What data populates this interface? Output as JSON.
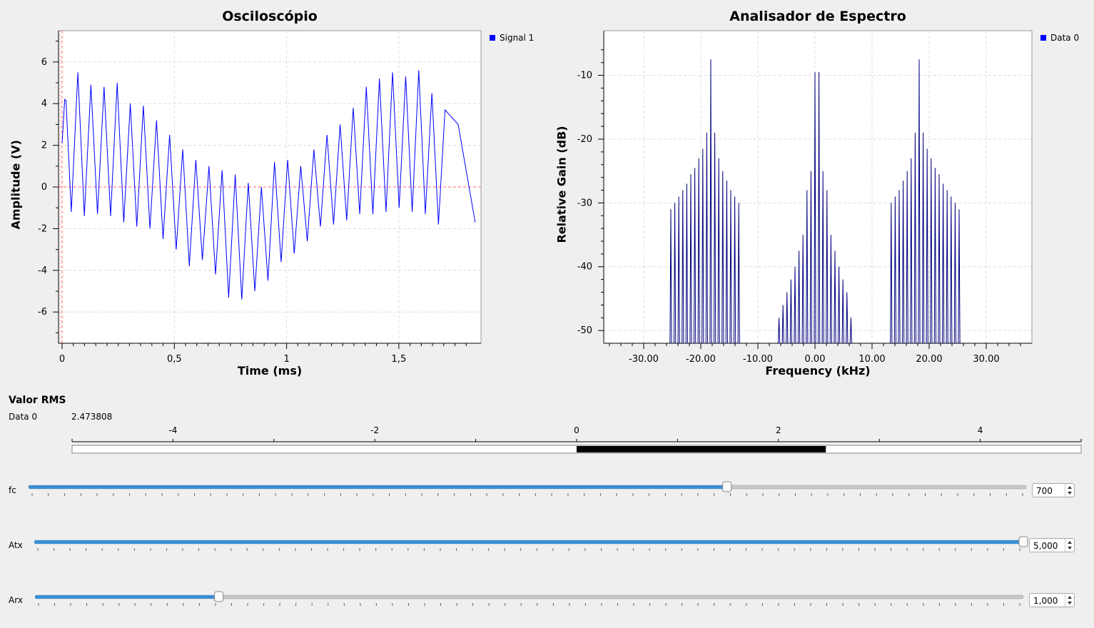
{
  "oscilloscope": {
    "title": "Osciloscópio",
    "xlabel": "Time (ms)",
    "ylabel": "Amplitude (V)",
    "legend": "Signal 1",
    "line_color": "#0000ff"
  },
  "spectrum": {
    "title": "Analisador de Espectro",
    "xlabel": "Frequency (kHz)",
    "ylabel": "Relative Gain (dB)",
    "legend": "Data 0",
    "line_color": "#000080"
  },
  "chart_data": [
    {
      "type": "line",
      "title": "Osciloscópio",
      "xlabel": "Time (ms)",
      "ylabel": "Amplitude (V)",
      "xlim": [
        0,
        1.85
      ],
      "ylim": [
        -7.5,
        7.5
      ],
      "xticks": [
        "0",
        "0,5",
        "1",
        "1,5"
      ],
      "xtick_values": [
        0,
        0.5,
        1,
        1.5
      ],
      "yticks": [
        "-6",
        "-4",
        "-2",
        "0",
        "2",
        "4",
        "6"
      ],
      "ytick_values": [
        -6,
        -4,
        -2,
        0,
        2,
        4,
        6
      ],
      "grid": true,
      "legend_position": "right",
      "series": [
        {
          "name": "Signal 1",
          "peaks": [
            4.2,
            5.5,
            4.9,
            4.8,
            5.0,
            4.0,
            3.9,
            3.2,
            2.5,
            1.8,
            1.3,
            1.0,
            0.8,
            0.6,
            0.2,
            0.0,
            1.2,
            1.3,
            1.0,
            1.8,
            2.5,
            3.0,
            3.8,
            4.8,
            5.2,
            5.5,
            5.3,
            5.6,
            4.5,
            3.7,
            3.0
          ],
          "troughs": [
            -1.2,
            -1.4,
            -1.3,
            -1.4,
            -1.7,
            -1.9,
            -2.0,
            -2.5,
            -3.0,
            -3.8,
            -3.5,
            -4.2,
            -5.3,
            -5.4,
            -5.0,
            -4.5,
            -3.6,
            -3.2,
            -2.6,
            -1.9,
            -1.8,
            -1.6,
            -1.3,
            -1.3,
            -1.2,
            -1.0,
            -1.2,
            -1.3,
            -1.8
          ]
        }
      ],
      "cursors": {
        "h_line_y": 0,
        "v_line_x": 0
      }
    },
    {
      "type": "line",
      "title": "Analisador de Espectro",
      "xlabel": "Frequency (kHz)",
      "ylabel": "Relative Gain (dB)",
      "xlim": [
        -37,
        38
      ],
      "ylim": [
        -52,
        -3
      ],
      "xticks": [
        "-30.00",
        "-20.00",
        "-10.00",
        "0.00",
        "10.00",
        "20.00",
        "30.00"
      ],
      "xtick_values": [
        -30,
        -20,
        -10,
        0,
        10,
        20,
        30
      ],
      "yticks": [
        "-10",
        "-20",
        "-30",
        "-40",
        "-50"
      ],
      "ytick_values": [
        -10,
        -20,
        -30,
        -40,
        -50
      ],
      "grid": true,
      "legend_position": "right",
      "series": [
        {
          "name": "Data 0",
          "peaks_left": {
            "center": -19.3,
            "spacing": 0.7,
            "values": [
              -31,
              -30,
              -29,
              -28,
              -27,
              -25.5,
              -24.5,
              -23,
              -21.5,
              -19,
              -7.5,
              -19,
              -23,
              -25,
              -26.5,
              -28,
              -29,
              -30
            ]
          },
          "peaks_center": {
            "center": 0.0,
            "spacing": 0.7,
            "values": [
              -48,
              -46,
              -44,
              -42,
              -40,
              -37.5,
              -35,
              -28,
              -25,
              -9.5,
              -9.5,
              -25,
              -28,
              -35,
              -37.5,
              -40,
              -42,
              -44,
              -48
            ]
          },
          "peaks_right": {
            "center": 19.3,
            "spacing": 0.7,
            "values": [
              -30,
              -29,
              -28,
              -26.5,
              -25,
              -23,
              -19,
              -7.5,
              -19,
              -21.5,
              -23,
              -24.5,
              -25.5,
              -27,
              -28,
              -29,
              -30,
              -31
            ]
          }
        }
      ]
    }
  ],
  "rms": {
    "title": "Valor RMS",
    "label": "Data 0",
    "value": "2.473808",
    "bar_value": 2.47,
    "bar_min": -5,
    "bar_max": 5,
    "scale_labels": [
      "-4",
      "-2",
      "0",
      "2",
      "4"
    ]
  },
  "sliders": [
    {
      "label": "fc",
      "value": "700",
      "fraction": 0.7
    },
    {
      "label": "Atx",
      "value": "5,000",
      "fraction": 1.0
    },
    {
      "label": "Arx",
      "value": "1,000",
      "fraction": 0.186
    }
  ],
  "colors": {
    "slider_fill": "#3a8fd5",
    "grid": "#dcdcdc",
    "cursor": "#ff6060"
  }
}
